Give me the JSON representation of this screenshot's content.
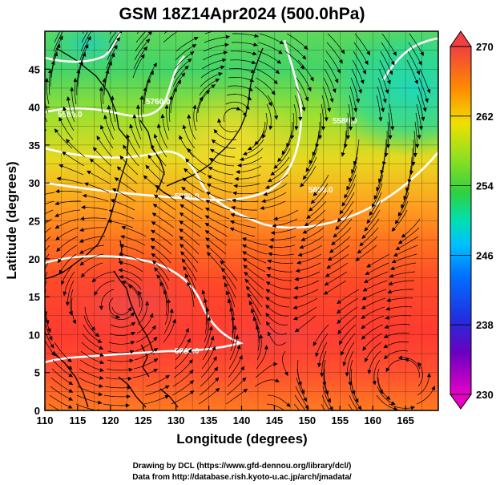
{
  "title": "GSM 18Z14Apr2024 (500.0hPa)",
  "x_axis": {
    "label": "Longitude (degrees)",
    "range": [
      110,
      170
    ],
    "ticks": [
      "110",
      "115",
      "120",
      "125",
      "130",
      "135",
      "140",
      "145",
      "150",
      "155",
      "160",
      "165"
    ]
  },
  "y_axis": {
    "label": "Latitude (degrees)",
    "range": [
      0,
      50
    ],
    "ticks": [
      "0",
      "5",
      "10",
      "15",
      "20",
      "25",
      "30",
      "35",
      "40",
      "45"
    ]
  },
  "colorbar": {
    "range": [
      230,
      270
    ],
    "ticks": [
      "230",
      "238",
      "246",
      "254",
      "262",
      "270"
    ],
    "colors": [
      "#e600c8",
      "#3a00b8",
      "#0040ff",
      "#00b4ff",
      "#00e0b0",
      "#30d030",
      "#90e020",
      "#f0e000",
      "#ff9000",
      "#ff4020",
      "#f04040"
    ]
  },
  "contours": {
    "color": "#ffffff",
    "labels": [
      "5580.0",
      "5760.0",
      "5880.0",
      "5580.0",
      "5880.0",
      "5880.0"
    ]
  },
  "credits": {
    "line1": "Drawing by DCL (https://www.gfd-dennou.org/library/dcl/)",
    "line2": "Data from http://database.rish.kyoto-u.ac.jp/arch/jmadata/"
  }
}
